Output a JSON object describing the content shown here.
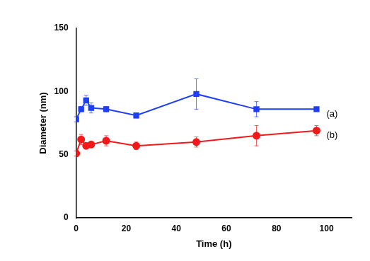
{
  "chart_data": {
    "type": "line",
    "x_label": "Time (h)",
    "y_label": "Diameter (nm)",
    "x": [
      0,
      2,
      4,
      6,
      12,
      24,
      48,
      72,
      96
    ],
    "series": [
      {
        "name": "(a)",
        "color": "#1f3ff5",
        "marker": "square",
        "values": [
          78,
          86,
          93,
          87,
          86,
          81,
          98,
          86,
          86
        ],
        "error": [
          2,
          2,
          4,
          4,
          2,
          2,
          12,
          6,
          0
        ]
      },
      {
        "name": "(b)",
        "color": "#f01a1a",
        "marker": "circle",
        "values": [
          51,
          62,
          57,
          58,
          61,
          57,
          60,
          65,
          69
        ],
        "error": [
          2,
          4,
          2,
          2,
          4,
          3,
          4,
          8,
          4
        ]
      }
    ],
    "xlim": [
      0,
      110
    ],
    "xticks": [
      0,
      20,
      40,
      60,
      80,
      100
    ],
    "ylim": [
      0,
      150
    ],
    "yticks": [
      0,
      50,
      100,
      150
    ],
    "grid": false
  }
}
